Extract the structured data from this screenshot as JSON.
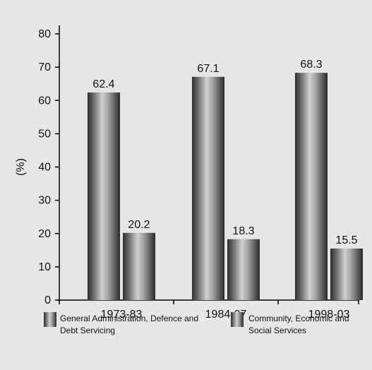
{
  "chart_data": {
    "type": "bar",
    "ylabel": "(%)",
    "ylim": [
      0,
      80
    ],
    "yticks": [
      0,
      10,
      20,
      30,
      40,
      50,
      60,
      70,
      80
    ],
    "categories": [
      "1973-83",
      "1984-97",
      "1998-03"
    ],
    "series": [
      {
        "name": "General Administration, Defence and Debt Servicing",
        "values": [
          62.4,
          67.1,
          68.3
        ]
      },
      {
        "name": "Community, Economic and Social Services",
        "values": [
          20.2,
          18.3,
          15.5
        ]
      }
    ],
    "data_labels": [
      "62.4",
      "67.1",
      "68.3",
      "20.2",
      "18.3",
      "15.5"
    ],
    "legend_placement": "bottom",
    "grid": false
  },
  "legend": {
    "items": [
      {
        "lines": [
          "General Administration, Defence and",
          "Debt Servicing"
        ]
      },
      {
        "lines": [
          "Community, Economic and",
          "Social Services"
        ]
      }
    ]
  },
  "colors": {
    "background": "#e6e6e6",
    "bar_dark": "#2b2b2b",
    "bar_light": "#d2d2d2"
  }
}
